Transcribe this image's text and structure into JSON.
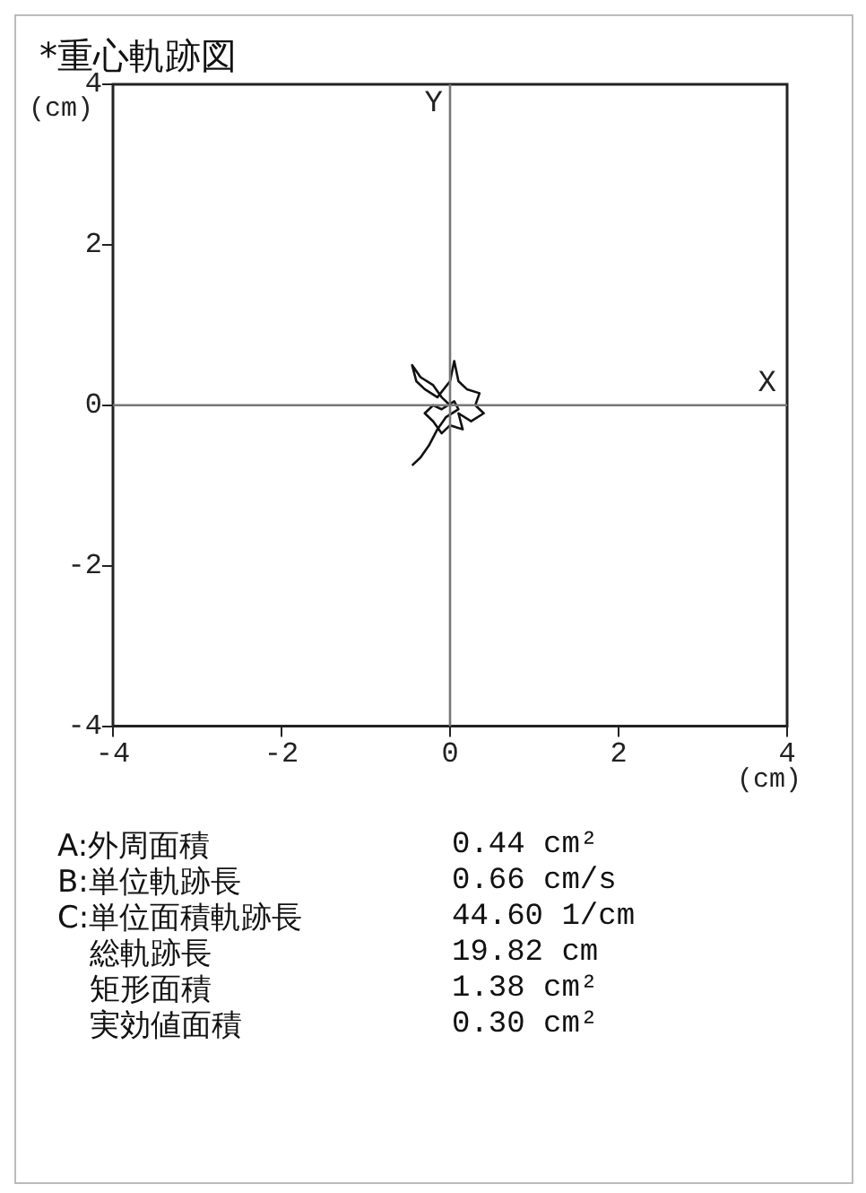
{
  "chart_data": {
    "type": "line",
    "title": "*重心軌跡図",
    "xlabel": "(cm)",
    "ylabel": "(cm)",
    "x": [
      0,
      -0.1,
      -0.2,
      -0.35,
      -0.45,
      -0.4,
      -0.3,
      -0.15,
      0,
      0.05,
      0.1,
      0.2,
      0.35,
      0.3,
      0.4,
      0.25,
      0.1,
      0.15,
      0,
      -0.1,
      -0.2,
      -0.3,
      -0.2,
      -0.1,
      0.05,
      0.1,
      -0.05,
      -0.15,
      -0.25,
      -0.35,
      -0.45
    ],
    "series": [
      {
        "color": "#111111",
        "values": [
          0,
          0.1,
          0.25,
          0.35,
          0.5,
          0.3,
          0.2,
          0.1,
          0.3,
          0.55,
          0.3,
          0.2,
          0.15,
          0,
          -0.1,
          -0.2,
          -0.1,
          -0.3,
          -0.25,
          -0.35,
          -0.2,
          -0.1,
          0,
          -0.05,
          0.05,
          -0.05,
          -0.15,
          -0.3,
          -0.5,
          -0.65,
          -0.75
        ]
      }
    ],
    "xlim": [
      -4,
      4
    ],
    "ylim": [
      -4,
      4
    ],
    "xticks": [
      -4,
      -2,
      0,
      2,
      4
    ],
    "yticks": [
      -4,
      -2,
      0,
      2,
      4
    ],
    "marker": "none",
    "line_style": "solid",
    "grid": false,
    "legend": false,
    "ref_lines": [
      {
        "axis": "x",
        "value": 0,
        "label": "Y",
        "color": "#777777"
      },
      {
        "axis": "y",
        "value": 0,
        "label": "X",
        "color": "#777777"
      }
    ],
    "annotations": [
      "A:外周面積 0.44 cm²",
      "B:単位軌跡長 0.66 cm/s",
      "C:単位面積軌跡長 44.60 1/cm",
      "総軌跡長 19.82 cm",
      "矩形面積 1.38 cm²",
      "実効値面積 0.30 cm²"
    ]
  }
}
